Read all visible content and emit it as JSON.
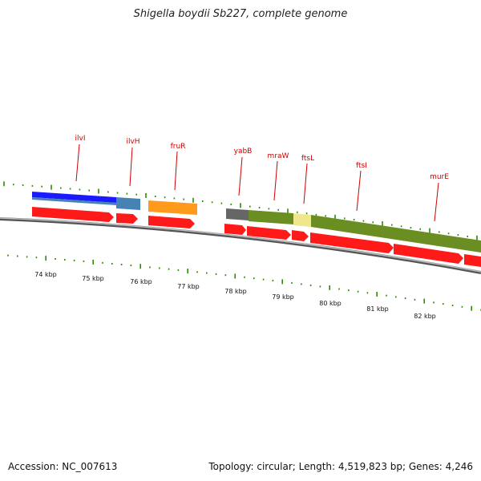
{
  "title": "Shigella boydii Sb227, complete genome",
  "footer": {
    "accession": "Accession: NC_007613",
    "summary": "Topology: circular; Length: 4,519,823 bp; Genes: 4,246"
  },
  "colors": {
    "backbone": "#8a8a8a",
    "tick": "#2e8b00",
    "gene_label": "#cc0000",
    "cds_arrow": "#ff1a1a",
    "ilvI": "#1a1aff",
    "ilvH": "#4682b4",
    "fruR": "#ff9a1a",
    "yabB": "#666666",
    "mraW": "#6b8e23",
    "ftsL": "#f0e68c",
    "dcw_cluster": "#6b8e23"
  },
  "genes": [
    {
      "name": "ilvI"
    },
    {
      "name": "ilvH"
    },
    {
      "name": "fruR"
    },
    {
      "name": "yabB"
    },
    {
      "name": "mraW"
    },
    {
      "name": "ftsL"
    },
    {
      "name": "ftsI"
    },
    {
      "name": "murE"
    }
  ],
  "kbp_labels": [
    "74 kbp",
    "75 kbp",
    "76 kbp",
    "77 kbp",
    "78 kbp",
    "79 kbp",
    "80 kbp",
    "81 kbp",
    "82 kbp"
  ]
}
